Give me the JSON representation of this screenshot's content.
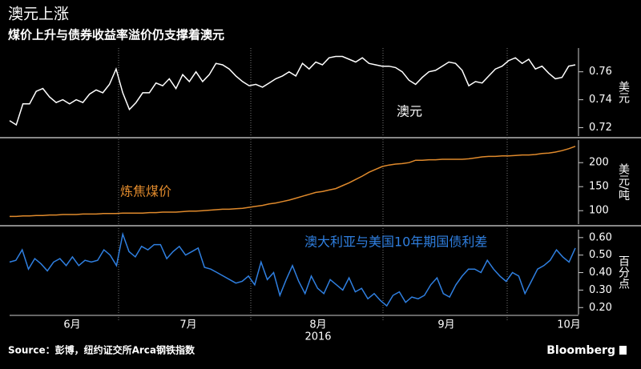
{
  "title": "澳元上涨",
  "subtitle": "煤价上升与债券收益率溢价仍支撑着澳元",
  "chart_data": [
    {
      "type": "line",
      "series": [
        {
          "name": "澳元",
          "color": "#ffffff",
          "values": [
            0.725,
            0.722,
            0.737,
            0.737,
            0.746,
            0.748,
            0.742,
            0.738,
            0.74,
            0.737,
            0.74,
            0.738,
            0.744,
            0.747,
            0.745,
            0.751,
            0.762,
            0.745,
            0.733,
            0.738,
            0.745,
            0.745,
            0.752,
            0.75,
            0.755,
            0.748,
            0.758,
            0.753,
            0.76,
            0.753,
            0.758,
            0.766,
            0.765,
            0.762,
            0.757,
            0.753,
            0.75,
            0.751,
            0.749,
            0.752,
            0.755,
            0.757,
            0.76,
            0.757,
            0.766,
            0.762,
            0.767,
            0.765,
            0.77,
            0.771,
            0.771,
            0.769,
            0.767,
            0.77,
            0.766,
            0.765,
            0.764,
            0.764,
            0.763,
            0.76,
            0.754,
            0.751,
            0.756,
            0.76,
            0.761,
            0.764,
            0.767,
            0.766,
            0.761,
            0.75,
            0.753,
            0.752,
            0.757,
            0.762,
            0.764,
            0.768,
            0.77,
            0.766,
            0.769,
            0.762,
            0.764,
            0.759,
            0.755,
            0.756,
            0.764,
            0.765
          ]
        }
      ],
      "ylim": [
        0.714,
        0.777
      ],
      "yticks": [
        0.72,
        0.74,
        0.76
      ],
      "y_label": "美元"
    },
    {
      "type": "line",
      "series": [
        {
          "name": "炼焦煤价",
          "color": "#e08a2c",
          "values": [
            88,
            88,
            89,
            89,
            90,
            90,
            91,
            91,
            92,
            92,
            92,
            93,
            93,
            93,
            94,
            94,
            94,
            95,
            95,
            95,
            95,
            96,
            96,
            97,
            97,
            97,
            98,
            99,
            99,
            100,
            101,
            102,
            103,
            103,
            104,
            105,
            107,
            109,
            111,
            114,
            116,
            119,
            122,
            126,
            130,
            134,
            138,
            140,
            143,
            146,
            152,
            158,
            165,
            172,
            180,
            186,
            192,
            195,
            197,
            198,
            200,
            205,
            205,
            206,
            206,
            207,
            207,
            207,
            207,
            208,
            210,
            212,
            213,
            213,
            214,
            214,
            215,
            216,
            216,
            217,
            219,
            220,
            222,
            225,
            229,
            234
          ]
        }
      ],
      "ylim": [
        72,
        247
      ],
      "yticks": [
        100,
        150,
        200
      ],
      "y_label": "美元/吨"
    },
    {
      "type": "line",
      "series": [
        {
          "name": "澳大利亚与美国10年期国债利差",
          "color": "#2f7fe0",
          "values": [
            0.46,
            0.47,
            0.53,
            0.42,
            0.48,
            0.45,
            0.41,
            0.46,
            0.48,
            0.44,
            0.49,
            0.44,
            0.47,
            0.46,
            0.47,
            0.53,
            0.5,
            0.44,
            0.62,
            0.52,
            0.49,
            0.55,
            0.53,
            0.56,
            0.56,
            0.48,
            0.52,
            0.55,
            0.5,
            0.52,
            0.54,
            0.43,
            0.42,
            0.4,
            0.38,
            0.36,
            0.34,
            0.35,
            0.38,
            0.33,
            0.46,
            0.36,
            0.4,
            0.27,
            0.36,
            0.44,
            0.35,
            0.28,
            0.38,
            0.31,
            0.28,
            0.36,
            0.33,
            0.3,
            0.37,
            0.29,
            0.31,
            0.25,
            0.28,
            0.24,
            0.21,
            0.27,
            0.29,
            0.23,
            0.26,
            0.25,
            0.27,
            0.33,
            0.37,
            0.28,
            0.26,
            0.33,
            0.38,
            0.42,
            0.42,
            0.4,
            0.47,
            0.42,
            0.38,
            0.35,
            0.4,
            0.38,
            0.28,
            0.35,
            0.42,
            0.44,
            0.47,
            0.53,
            0.49,
            0.46,
            0.54
          ]
        }
      ],
      "ylim": [
        0.16,
        0.645
      ],
      "yticks": [
        {
          "value": 0.2,
          "label": "0.20"
        },
        {
          "value": 0.3,
          "label": "0.30"
        },
        {
          "value": 0.4,
          "label": "0.40"
        },
        {
          "value": 0.5,
          "label": "0.50"
        },
        {
          "value": 0.6,
          "label": "0.60"
        }
      ],
      "y_label": "百分点",
      "x_tick_labels": [
        "6月",
        "7月",
        "8月",
        "9月",
        "10月"
      ],
      "x_label": "2016"
    }
  ],
  "source": "Source：彭博，纽约证交所Arca钢铁指数",
  "logo": "Bloomberg"
}
